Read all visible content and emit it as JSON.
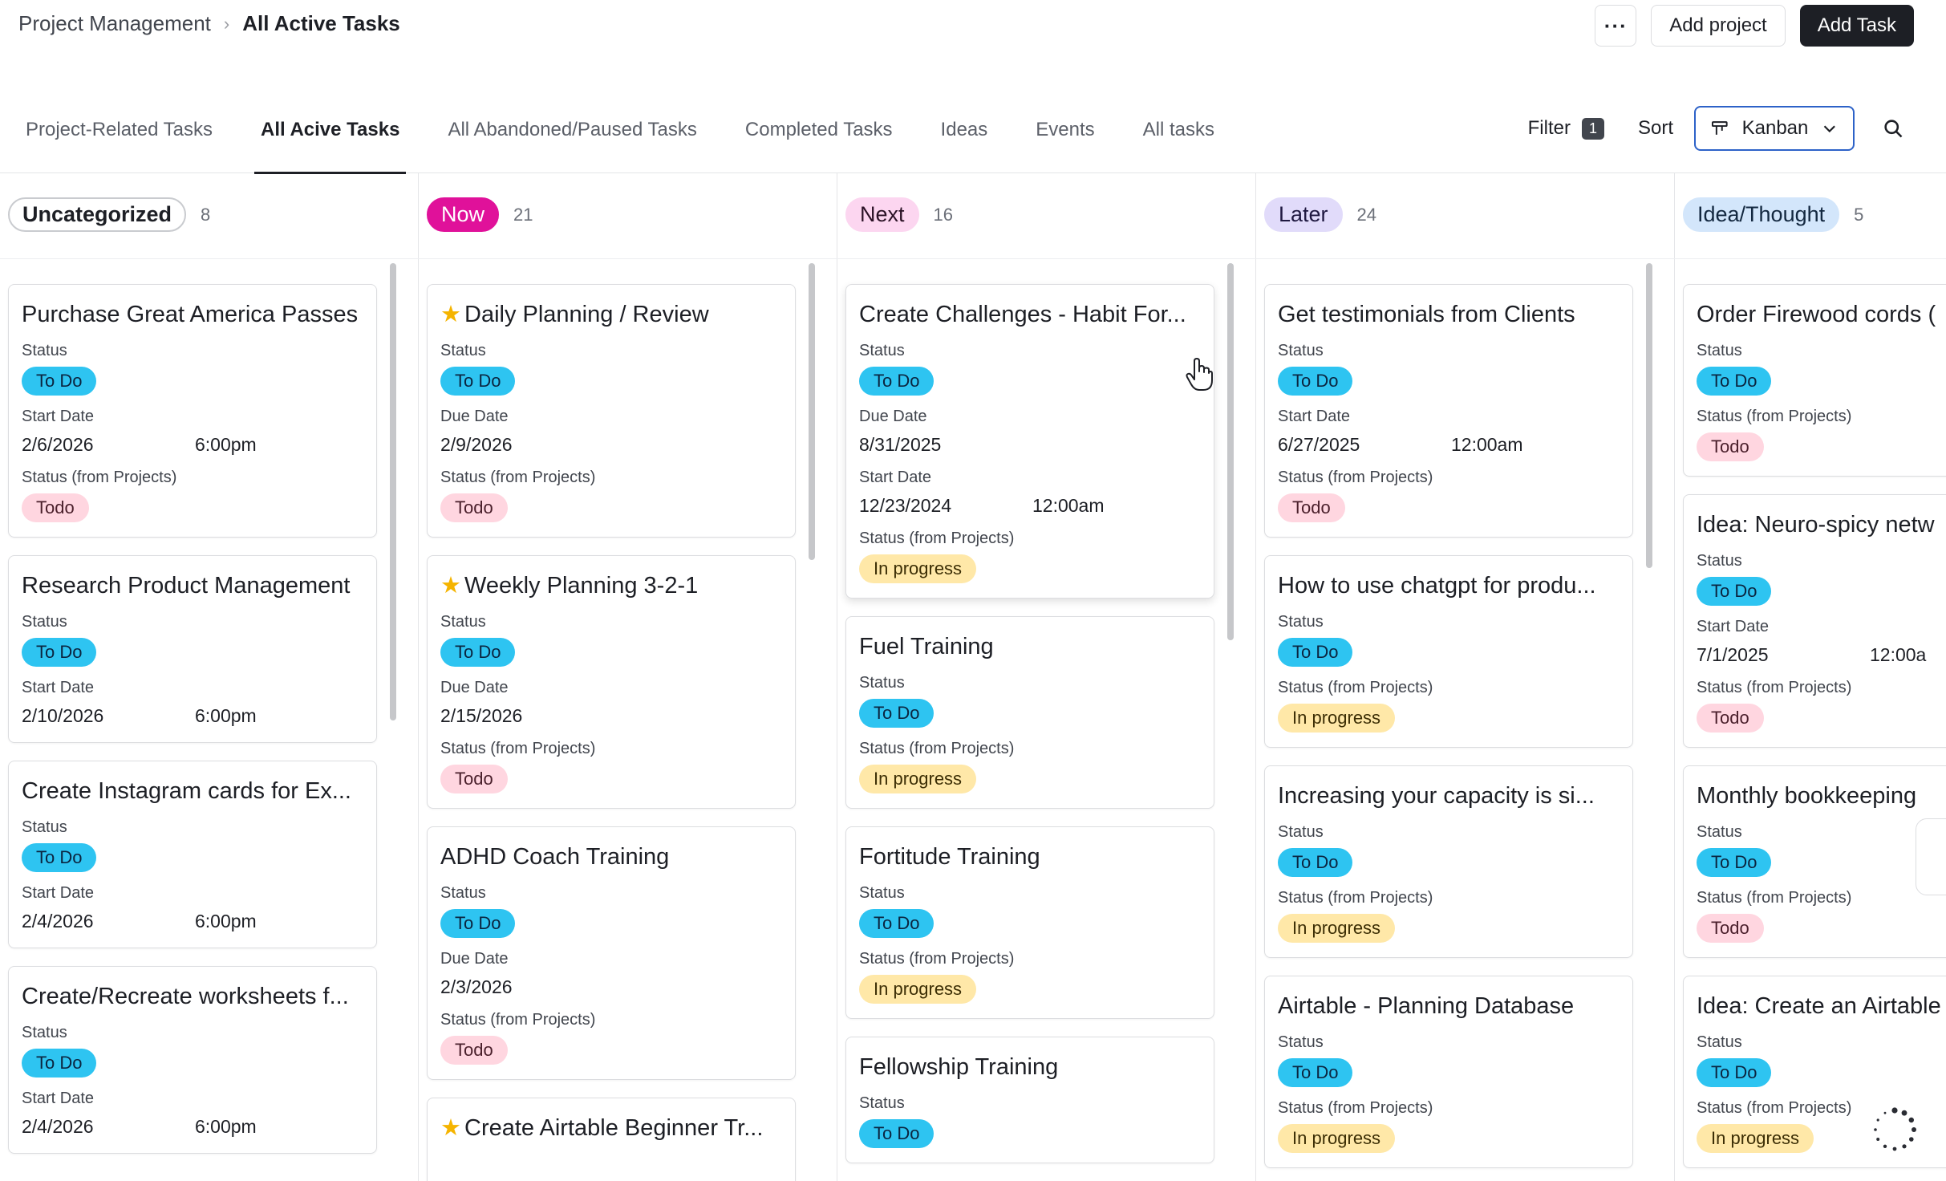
{
  "header": {
    "breadcrumb_root": "Project Management",
    "breadcrumb_current": "All Active Tasks",
    "more_label": "···",
    "add_project_label": "Add project",
    "add_task_label": "Add Task"
  },
  "tabs": [
    {
      "label": "Project-Related Tasks",
      "active": false
    },
    {
      "label": "All Acive Tasks",
      "active": true
    },
    {
      "label": "All Abandoned/Paused Tasks",
      "active": false
    },
    {
      "label": "Completed Tasks",
      "active": false
    },
    {
      "label": "Ideas",
      "active": false
    },
    {
      "label": "Events",
      "active": false
    },
    {
      "label": "All tasks",
      "active": false
    }
  ],
  "controls": {
    "filter_label": "Filter",
    "filter_count": "1",
    "sort_label": "Sort",
    "view_label": "Kanban"
  },
  "columns": [
    {
      "name": "Uncategorized",
      "count": "8",
      "badge_bg": "#ffffff",
      "badge_fg": "#1d1f25",
      "badge_border": "#c9cbcf",
      "cards": [
        {
          "title": "Purchase Great America Passes",
          "fields": [
            {
              "label": "Status",
              "pill": "To Do",
              "pill_style": "todo-blue"
            },
            {
              "label": "Start Date",
              "date": "2/6/2026",
              "time": "6:00pm"
            },
            {
              "label": "Status (from Projects)",
              "pill": "Todo",
              "pill_style": "todo-pink"
            }
          ]
        },
        {
          "title": "Research Product Management",
          "fields": [
            {
              "label": "Status",
              "pill": "To Do",
              "pill_style": "todo-blue"
            },
            {
              "label": "Start Date",
              "date": "2/10/2026",
              "time": "6:00pm"
            }
          ]
        },
        {
          "title": "Create Instagram cards for Ex...",
          "fields": [
            {
              "label": "Status",
              "pill": "To Do",
              "pill_style": "todo-blue"
            },
            {
              "label": "Start Date",
              "date": "2/4/2026",
              "time": "6:00pm"
            }
          ]
        },
        {
          "title": "Create/Recreate worksheets f...",
          "fields": [
            {
              "label": "Status",
              "pill": "To Do",
              "pill_style": "todo-blue"
            },
            {
              "label": "Start Date",
              "date": "2/4/2026",
              "time": "6:00pm"
            }
          ]
        }
      ]
    },
    {
      "name": "Now",
      "count": "21",
      "badge_bg": "#e0119a",
      "badge_fg": "#ffffff",
      "badge_border": "#e0119a",
      "cards": [
        {
          "title": "Daily Planning / Review",
          "star": true,
          "fields": [
            {
              "label": "Status",
              "pill": "To Do",
              "pill_style": "todo-blue"
            },
            {
              "label": "Due Date",
              "date": "2/9/2026"
            },
            {
              "label": "Status (from Projects)",
              "pill": "Todo",
              "pill_style": "todo-pink"
            }
          ]
        },
        {
          "title": "Weekly Planning 3-2-1",
          "star": true,
          "fields": [
            {
              "label": "Status",
              "pill": "To Do",
              "pill_style": "todo-blue"
            },
            {
              "label": "Due Date",
              "date": "2/15/2026"
            },
            {
              "label": "Status (from Projects)",
              "pill": "Todo",
              "pill_style": "todo-pink"
            }
          ]
        },
        {
          "title": "ADHD Coach Training",
          "fields": [
            {
              "label": "Status",
              "pill": "To Do",
              "pill_style": "todo-blue"
            },
            {
              "label": "Due Date",
              "date": "2/3/2026"
            },
            {
              "label": "Status (from Projects)",
              "pill": "Todo",
              "pill_style": "todo-pink"
            }
          ]
        },
        {
          "title": "Create Airtable Beginner Tr...",
          "star": true,
          "fields": []
        }
      ]
    },
    {
      "name": "Next",
      "count": "16",
      "badge_bg": "#fcd6f0",
      "badge_fg": "#2a1125",
      "badge_border": "#fcd6f0",
      "cards": [
        {
          "title": "Create Challenges - Habit For...",
          "hover": true,
          "fields": [
            {
              "label": "Status",
              "pill": "To Do",
              "pill_style": "todo-blue"
            },
            {
              "label": "Due Date",
              "date": "8/31/2025"
            },
            {
              "label": "Start Date",
              "date": "12/23/2024",
              "time": "12:00am"
            },
            {
              "label": "Status (from Projects)",
              "pill": "In progress",
              "pill_style": "progress"
            }
          ]
        },
        {
          "title": "Fuel Training",
          "fields": [
            {
              "label": "Status",
              "pill": "To Do",
              "pill_style": "todo-blue"
            },
            {
              "label": "Status (from Projects)",
              "pill": "In progress",
              "pill_style": "progress"
            }
          ]
        },
        {
          "title": "Fortitude Training",
          "fields": [
            {
              "label": "Status",
              "pill": "To Do",
              "pill_style": "todo-blue"
            },
            {
              "label": "Status (from Projects)",
              "pill": "In progress",
              "pill_style": "progress"
            }
          ]
        },
        {
          "title": "Fellowship Training",
          "fields": [
            {
              "label": "Status",
              "pill": "To Do",
              "pill_style": "todo-blue"
            }
          ]
        }
      ]
    },
    {
      "name": "Later",
      "count": "24",
      "badge_bg": "#e1dbfa",
      "badge_fg": "#1f1840",
      "badge_border": "#e1dbfa",
      "cards": [
        {
          "title": "Get testimonials from Clients",
          "fields": [
            {
              "label": "Status",
              "pill": "To Do",
              "pill_style": "todo-blue"
            },
            {
              "label": "Start Date",
              "date": "6/27/2025",
              "time": "12:00am"
            },
            {
              "label": "Status (from Projects)",
              "pill": "Todo",
              "pill_style": "todo-pink"
            }
          ]
        },
        {
          "title": "How to use chatgpt for produ...",
          "fields": [
            {
              "label": "Status",
              "pill": "To Do",
              "pill_style": "todo-blue"
            },
            {
              "label": "Status (from Projects)",
              "pill": "In progress",
              "pill_style": "progress"
            }
          ]
        },
        {
          "title": "Increasing your capacity is si...",
          "fields": [
            {
              "label": "Status",
              "pill": "To Do",
              "pill_style": "todo-blue"
            },
            {
              "label": "Status (from Projects)",
              "pill": "In progress",
              "pill_style": "progress"
            }
          ]
        },
        {
          "title": "Airtable - Planning Database",
          "fields": [
            {
              "label": "Status",
              "pill": "To Do",
              "pill_style": "todo-blue"
            },
            {
              "label": "Status (from Projects)",
              "pill": "In progress",
              "pill_style": "progress"
            }
          ]
        }
      ]
    },
    {
      "name": "Idea/Thought",
      "count": "5",
      "badge_bg": "#d3e6fb",
      "badge_fg": "#132840",
      "badge_border": "#d3e6fb",
      "cards": [
        {
          "title": "Order Firewood cords (",
          "fields": [
            {
              "label": "Status",
              "pill": "To Do",
              "pill_style": "todo-blue"
            },
            {
              "label": "Status (from Projects)",
              "pill": "Todo",
              "pill_style": "todo-pink"
            }
          ]
        },
        {
          "title": "Idea: Neuro-spicy netw",
          "fields": [
            {
              "label": "Status",
              "pill": "To Do",
              "pill_style": "todo-blue"
            },
            {
              "label": "Start Date",
              "date": "7/1/2025",
              "time": "12:00a"
            },
            {
              "label": "Status (from Projects)",
              "pill": "Todo",
              "pill_style": "todo-pink"
            }
          ]
        },
        {
          "title": "Monthly bookkeeping",
          "fields": [
            {
              "label": "Status",
              "pill": "To Do",
              "pill_style": "todo-blue"
            },
            {
              "label": "Status (from Projects)",
              "pill": "Todo",
              "pill_style": "todo-pink"
            }
          ]
        },
        {
          "title": "Idea: Create an Airtable",
          "fields": [
            {
              "label": "Status",
              "pill": "To Do",
              "pill_style": "todo-blue"
            },
            {
              "label": "Status (from Projects)",
              "pill": "In progress",
              "pill_style": "progress"
            }
          ]
        }
      ]
    }
  ],
  "icons": {
    "view": "kanban-icon",
    "chevron": "chevron-down-icon",
    "search": "search-icon",
    "star": "star-icon",
    "cursor": "hand-cursor-icon",
    "loader": "loading-spinner-icon"
  }
}
